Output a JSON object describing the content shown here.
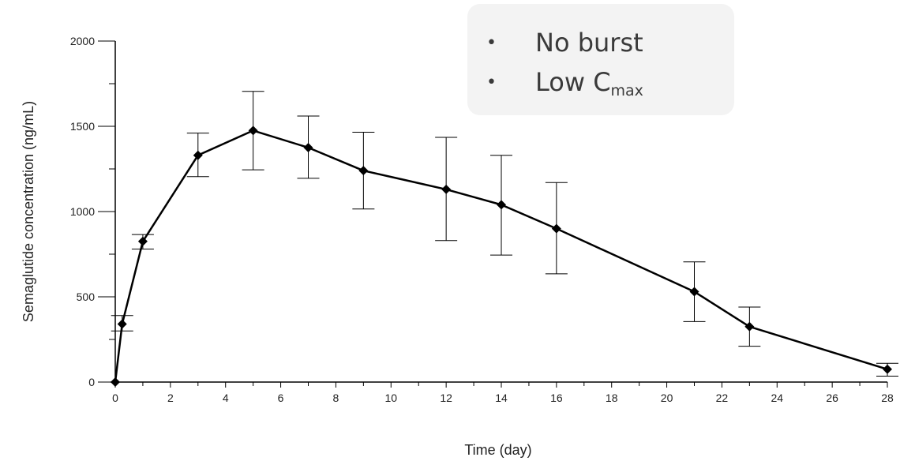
{
  "chart_data": {
    "type": "line",
    "xlabel": "Time (day)",
    "ylabel": "Semaglutide concentration (ng/mL)",
    "xlim": [
      0,
      28
    ],
    "ylim": [
      0,
      2000
    ],
    "x_ticks": [
      0,
      2,
      4,
      6,
      8,
      10,
      12,
      14,
      16,
      18,
      20,
      22,
      24,
      26,
      28
    ],
    "y_ticks": [
      0,
      500,
      1000,
      1500,
      2000
    ],
    "grid": false,
    "marker": "diamond",
    "color": "#000000",
    "series": [
      {
        "x": [
          0,
          0.25,
          1,
          3,
          5,
          7,
          9,
          12,
          14,
          16,
          21,
          23,
          28
        ],
        "y": [
          0,
          340,
          825,
          1330,
          1475,
          1375,
          1240,
          1130,
          1040,
          900,
          530,
          325,
          75
        ],
        "err_low": [
          0,
          300,
          780,
          1205,
          1245,
          1195,
          1015,
          830,
          745,
          635,
          355,
          210,
          35
        ],
        "err_high": [
          0,
          390,
          865,
          1460,
          1705,
          1560,
          1465,
          1435,
          1330,
          1170,
          705,
          440,
          110
        ]
      }
    ]
  },
  "callout": {
    "item1": "No burst",
    "item2_prefix": "Low C",
    "item2_sub": "max",
    "bullet": "•"
  }
}
